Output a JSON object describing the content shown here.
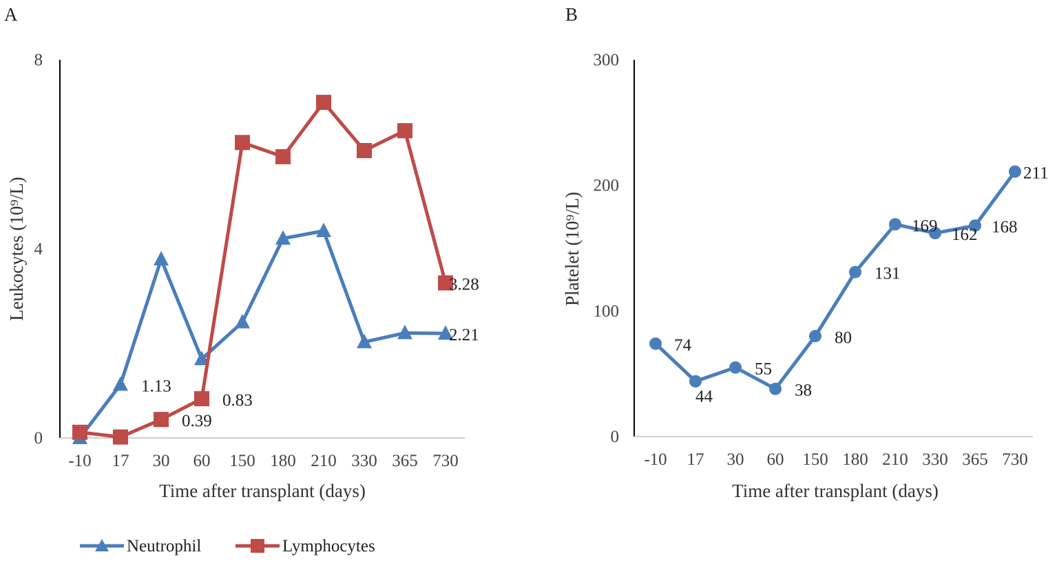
{
  "chart_data": [
    {
      "type": "line",
      "panel_label": "A",
      "categories": [
        "-10",
        "17",
        "30",
        "60",
        "150",
        "180",
        "210",
        "330",
        "365",
        "730"
      ],
      "xlabel": "Time after transplant (days)",
      "ylabel": "Leukocytes (10⁹/L)",
      "ylim": [
        0,
        8
      ],
      "yticks": [
        "0",
        "4",
        "8"
      ],
      "series": [
        {
          "name": "Neutrophil",
          "color": "#4a7ebb",
          "marker": "triangle",
          "values": [
            0.0,
            1.13,
            3.78,
            1.67,
            2.45,
            4.22,
            4.38,
            2.03,
            2.22,
            2.21
          ],
          "labels": [
            null,
            "1.13",
            null,
            null,
            null,
            null,
            null,
            null,
            null,
            "2.21"
          ]
        },
        {
          "name": "Lymphocytes",
          "color": "#be4b48",
          "marker": "square",
          "values": [
            0.12,
            0.02,
            0.39,
            0.83,
            6.25,
            5.95,
            7.1,
            6.08,
            6.5,
            3.28
          ],
          "labels": [
            null,
            null,
            "0.39",
            "0.83",
            null,
            null,
            null,
            null,
            null,
            "3.28"
          ]
        }
      ],
      "legend": [
        "Neutrophil",
        "Lymphocytes"
      ]
    },
    {
      "type": "line",
      "panel_label": "B",
      "categories": [
        "-10",
        "17",
        "30",
        "60",
        "150",
        "180",
        "210",
        "330",
        "365",
        "730"
      ],
      "xlabel": "Time after transplant (days)",
      "ylabel": "Platelet (10⁹/L)",
      "ylim": [
        0,
        300
      ],
      "yticks": [
        "0",
        "100",
        "200",
        "300"
      ],
      "series": [
        {
          "name": "Platelet",
          "color": "#4a7ebb",
          "marker": "circle",
          "values": [
            74,
            44,
            55,
            38,
            80,
            131,
            169,
            162,
            168,
            211
          ],
          "labels": [
            "74",
            "44",
            "55",
            "38",
            "80",
            "131",
            "169",
            "162",
            "168",
            "211"
          ]
        }
      ]
    }
  ]
}
